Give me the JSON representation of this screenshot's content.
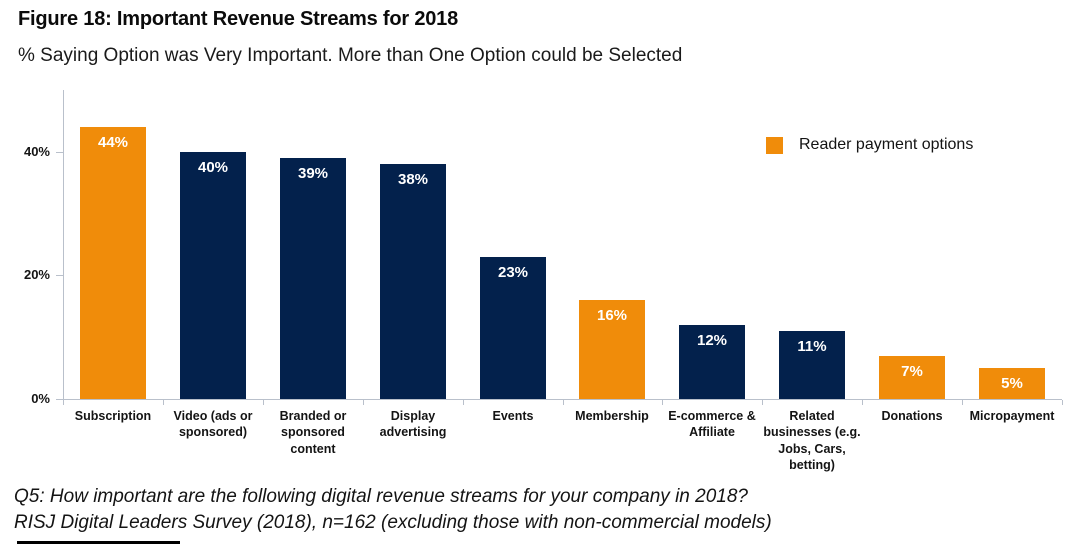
{
  "header": {
    "title": "Figure 18: Important Revenue Streams for 2018",
    "subtitle": "% Saying Option was Very Important. More than One Option could be Selected"
  },
  "legend": {
    "label": "Reader payment options",
    "swatch_color": "#F08C0A"
  },
  "footer": {
    "line1": "Q5: How important are the following digital revenue streams for your company in 2018?",
    "line2": "RISJ Digital Leaders Survey (2018), n=162 (excluding those with non-commercial models)"
  },
  "chart_data": {
    "type": "bar",
    "title": "Figure 18: Important Revenue Streams for 2018",
    "subtitle": "% Saying Option was Very Important. More than One Option could be Selected",
    "categories": [
      "Subscription",
      "Video (ads or sponsored)",
      "Branded or sponsored content",
      "Display advertising",
      "Events",
      "Membership",
      "E-commerce & Affiliate",
      "Related businesses (e.g. Jobs, Cars, betting)",
      "Donations",
      "Micropayment"
    ],
    "values": [
      44,
      40,
      39,
      38,
      23,
      16,
      12,
      11,
      7,
      5
    ],
    "value_labels": [
      "44%",
      "40%",
      "39%",
      "38%",
      "23%",
      "16%",
      "12%",
      "11%",
      "7%",
      "5%"
    ],
    "bar_groups": [
      "reader_payment",
      "other",
      "other",
      "other",
      "other",
      "reader_payment",
      "other",
      "other",
      "reader_payment",
      "reader_payment"
    ],
    "colors": {
      "reader_payment": "#F08C0A",
      "other": "#03214C"
    },
    "legend": [
      {
        "label": "Reader payment options",
        "color": "#F08C0A"
      }
    ],
    "legend_position": "top-right",
    "xlabel": "",
    "ylabel": "",
    "yticks": [
      0,
      20,
      40
    ],
    "ytick_labels": [
      "0%",
      "20%",
      "40%"
    ],
    "ylim": [
      0,
      50
    ],
    "grid": false
  }
}
